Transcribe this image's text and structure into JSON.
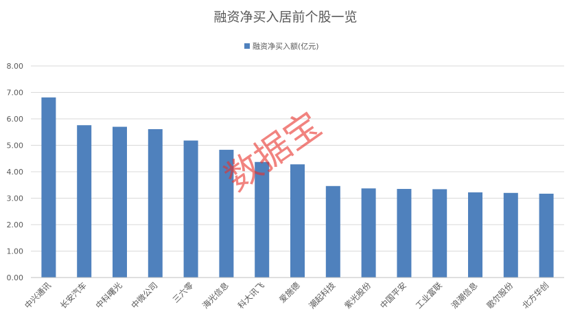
{
  "chart_data": {
    "type": "bar",
    "title": "融资净买入居前个股一览",
    "legend": {
      "position": "top",
      "label": "融资净买入额(亿元)"
    },
    "series": [
      {
        "name": "融资净买入额(亿元)",
        "color": "#4F81BD",
        "values": [
          6.81,
          5.76,
          5.7,
          5.61,
          5.18,
          4.83,
          4.37,
          4.28,
          3.46,
          3.37,
          3.35,
          3.34,
          3.22,
          3.2,
          3.17
        ]
      }
    ],
    "categories": [
      "中兴通讯",
      "长安汽车",
      "中科曙光",
      "中微公司",
      "三六零",
      "海光信息",
      "科大讯飞",
      "爱施德",
      "潮起科技",
      "紫光股份",
      "中国平安",
      "工业富联",
      "浪潮信息",
      "歌尔股份",
      "北方华创"
    ],
    "ylim": [
      0,
      8
    ],
    "yticks": [
      "0.00",
      "1.00",
      "2.00",
      "3.00",
      "4.00",
      "5.00",
      "6.00",
      "7.00",
      "8.00"
    ],
    "grid": true,
    "watermark": "数据宝",
    "watermark_color": "#E8302A",
    "gridline_color": "#D9D9D9",
    "axis_color": "#BFBFBF",
    "text_color": "#595959"
  }
}
